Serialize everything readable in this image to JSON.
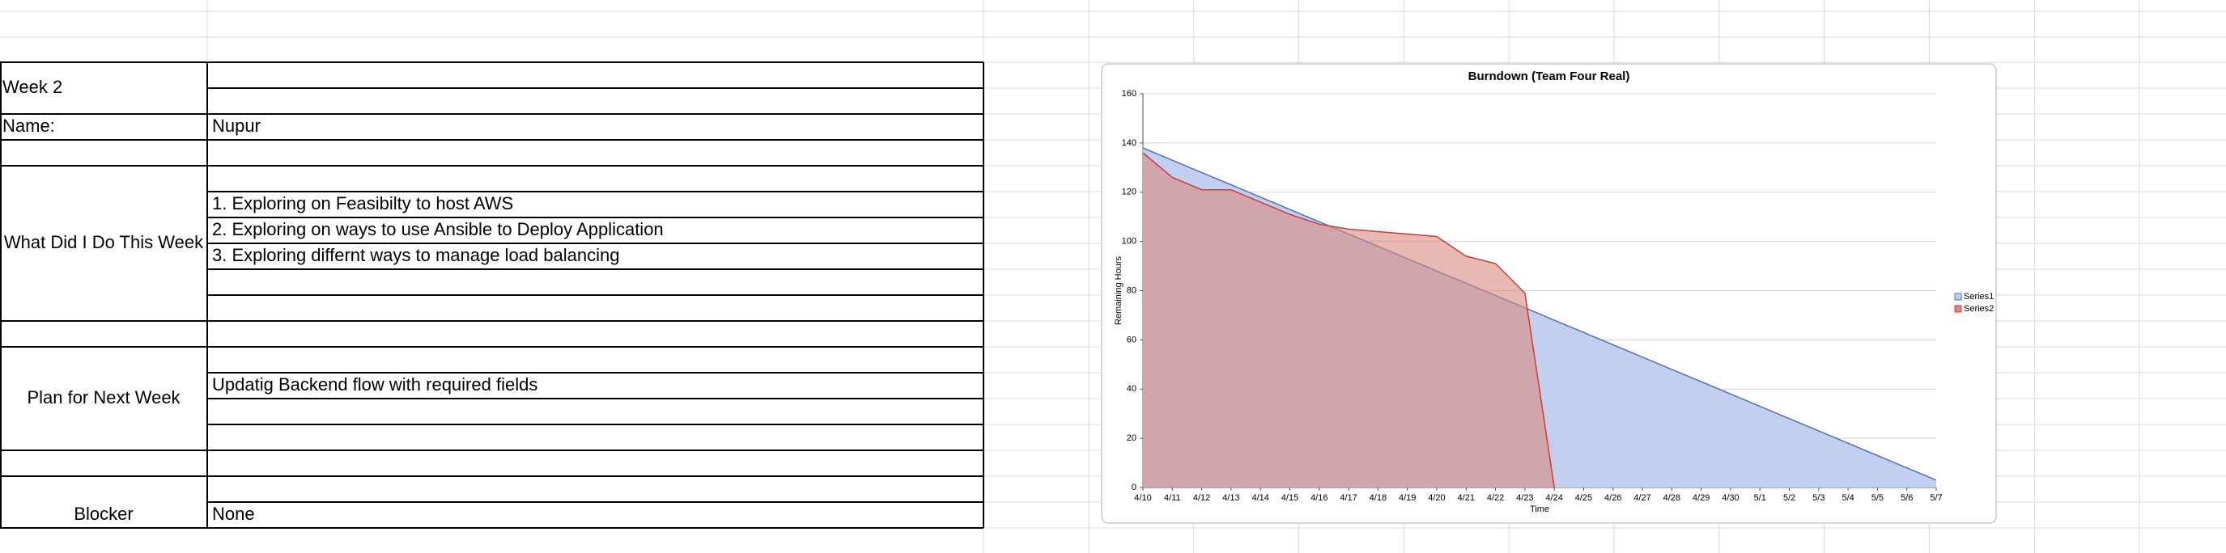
{
  "report": {
    "week": "Week 2",
    "name_label": "Name:",
    "name": "Nupur",
    "done_label": "What Did I Do This Week",
    "done": [
      "1. Exploring on Feasibilty to host AWS",
      "2. Exploring on ways to use Ansible to Deploy Application",
      "3. Exploring differnt ways to manage load balancing"
    ],
    "plan_label": "Plan for Next Week",
    "plan": [
      "Updatig Backend flow with required fields"
    ],
    "blocker_label": "Blocker",
    "blocker": "None"
  },
  "chart_data": {
    "type": "area",
    "title": "Burndown (Team Four Real)",
    "x_label": "Time",
    "y_label": "Remaining Hours",
    "categories": [
      "4/10",
      "4/11",
      "4/12",
      "4/13",
      "4/14",
      "4/15",
      "4/16",
      "4/17",
      "4/18",
      "4/19",
      "4/20",
      "4/21",
      "4/22",
      "4/23",
      "4/24",
      "4/25",
      "4/26",
      "4/27",
      "4/28",
      "4/29",
      "4/30",
      "5/1",
      "5/2",
      "5/3",
      "5/4",
      "5/5",
      "5/6",
      "5/7"
    ],
    "series": [
      {
        "name": "Series1",
        "color": "#4a6fc7",
        "fill": "#c3cfee",
        "values": [
          138,
          133,
          128,
          123,
          118,
          113,
          108,
          103,
          98,
          93,
          88,
          83,
          78,
          73,
          68,
          63,
          58,
          53,
          48,
          43,
          38,
          33,
          28,
          23,
          18,
          13,
          8,
          3
        ]
      },
      {
        "name": "Series2",
        "color": "#d23a2e",
        "fill": "#d98a80",
        "values": [
          136,
          126,
          121,
          121,
          116,
          111,
          107,
          105,
          104,
          103,
          102,
          94,
          91,
          79,
          0,
          null,
          null,
          null,
          null,
          null,
          null,
          null,
          null,
          null,
          null,
          null,
          null,
          null
        ]
      }
    ],
    "ylim": [
      0,
      160
    ],
    "yticks": [
      0,
      20,
      40,
      60,
      80,
      100,
      120,
      140,
      160
    ],
    "grid": true,
    "legend": "right"
  }
}
